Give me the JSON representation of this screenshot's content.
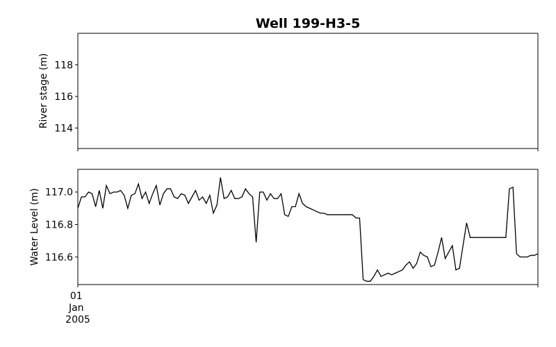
{
  "chart_data": {
    "type": "line",
    "title": "Well 199-H3-5",
    "xlabel": "",
    "x_tick_labels": [
      {
        "x": "2005-01-01",
        "label_lines": [
          "01",
          "Jan",
          "2005"
        ]
      }
    ],
    "panels": [
      {
        "id": "river",
        "ylabel": "River stage (m)",
        "ylim": [
          112.7,
          120.0
        ],
        "yticks": [
          114,
          116,
          118
        ],
        "series": []
      },
      {
        "id": "well",
        "ylabel": "Water Level (m)",
        "ylim": [
          116.43,
          117.14
        ],
        "yticks": [
          116.6,
          116.8,
          117.0
        ],
        "series": [
          {
            "color": "#000000",
            "values": [
              116.9,
              116.97,
              116.97,
              117.0,
              116.99,
              116.91,
              117.01,
              116.9,
              117.04,
              116.99,
              117.0,
              117.0,
              117.01,
              116.98,
              116.9,
              116.98,
              116.99,
              117.05,
              116.96,
              117.0,
              116.93,
              116.99,
              117.04,
              116.92,
              116.99,
              117.02,
              117.02,
              116.97,
              116.96,
              116.99,
              116.98,
              116.93,
              116.97,
              117.01,
              116.95,
              116.97,
              116.93,
              116.98,
              116.87,
              116.92,
              117.09,
              116.96,
              116.97,
              117.01,
              116.96,
              116.96,
              116.97,
              117.02,
              116.99,
              116.97,
              116.69,
              117.0,
              117.0,
              116.95,
              116.99,
              116.96,
              116.96,
              116.99,
              116.86,
              116.85,
              116.91,
              116.91,
              116.99,
              116.93,
              116.91,
              116.9,
              116.89,
              116.88,
              116.87,
              116.87,
              116.86,
              116.86,
              116.86,
              116.86,
              116.86,
              116.86,
              116.86,
              116.86,
              116.84,
              116.84,
              116.46,
              116.45,
              116.45,
              116.48,
              116.52,
              116.48,
              116.49,
              116.5,
              116.49,
              116.5,
              116.51,
              116.52,
              116.55,
              116.57,
              116.53,
              116.56,
              116.63,
              116.61,
              116.6,
              116.54,
              116.55,
              116.63,
              116.72,
              116.59,
              116.63,
              116.67,
              116.52,
              116.53,
              116.67,
              116.81,
              116.72,
              116.72,
              116.72,
              116.72,
              116.72,
              116.72,
              116.72,
              116.72,
              116.72,
              116.72,
              116.72,
              117.02,
              117.03,
              116.62,
              116.6,
              116.6,
              116.6,
              116.61,
              116.61,
              116.62
            ]
          }
        ]
      }
    ]
  }
}
